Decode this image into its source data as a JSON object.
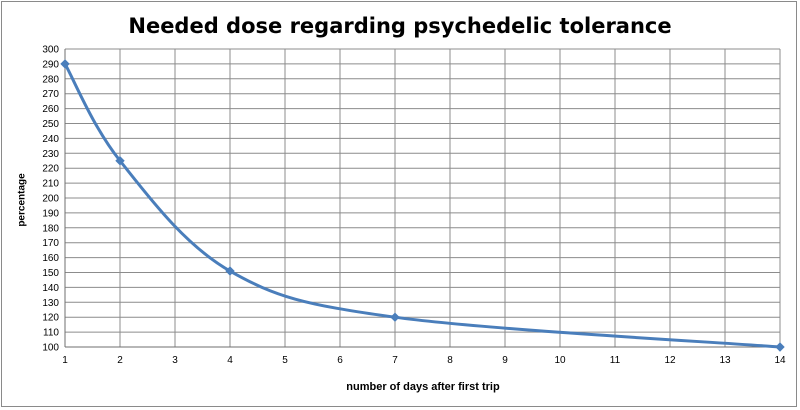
{
  "chart_data": {
    "type": "line",
    "title": "Needed dose regarding psychedelic tolerance",
    "xlabel": "number of days  after first trip",
    "ylabel": "percentage",
    "xlim": [
      1,
      14
    ],
    "ylim": [
      100,
      300
    ],
    "xticks": [
      1,
      2,
      3,
      4,
      5,
      6,
      7,
      8,
      9,
      10,
      11,
      12,
      13,
      14
    ],
    "yticks": [
      100,
      110,
      120,
      130,
      140,
      150,
      160,
      170,
      180,
      190,
      200,
      210,
      220,
      230,
      240,
      250,
      260,
      270,
      280,
      290,
      300
    ],
    "grid": true,
    "legend": "none",
    "series": [
      {
        "color": "#4a7ebb",
        "x": [
          1,
          2,
          4,
          7,
          14
        ],
        "y": [
          290,
          225,
          151,
          120,
          100
        ]
      }
    ]
  }
}
